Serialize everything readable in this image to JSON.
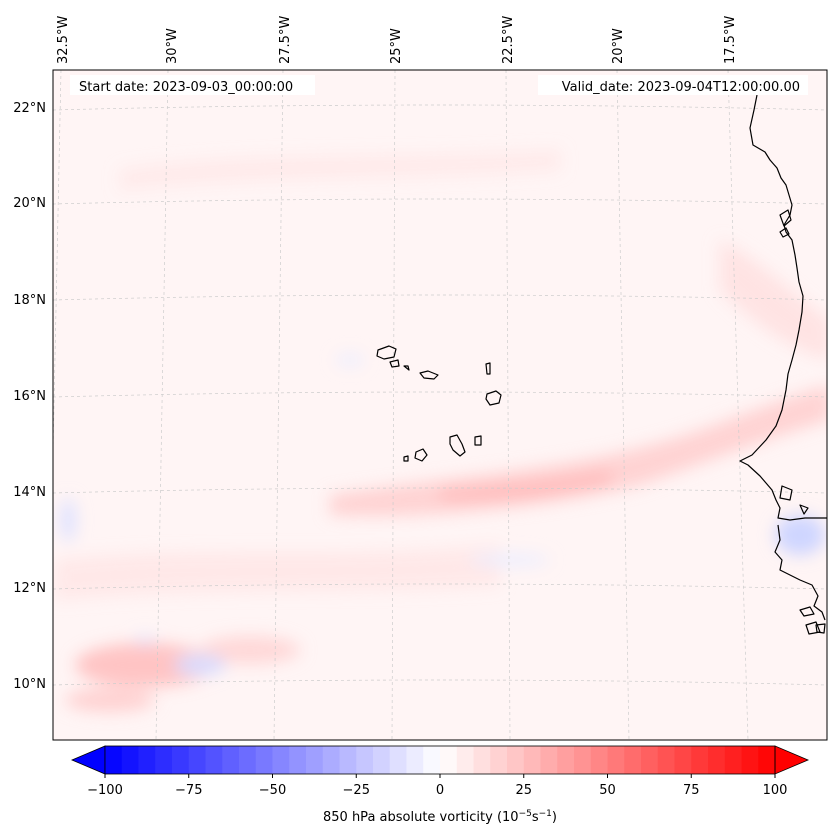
{
  "map": {
    "start_label": "Start date: 2023-09-03_00:00:00",
    "valid_label": "Valid_date: 2023-09-04T12:00:00.00",
    "lon_ticks": [
      "32.5°W",
      "30°W",
      "27.5°W",
      "25°W",
      "22.5°W",
      "20°W",
      "17.5°W"
    ],
    "lat_ticks": [
      "22°N",
      "20°N",
      "18°N",
      "16°N",
      "14°N",
      "12°N",
      "10°N"
    ],
    "coastline_color": "#000000",
    "gridline_color": "#cccccc"
  },
  "colorbar": {
    "label_text": "850 hPa absolute vorticity",
    "units_text": "(10",
    "units_exp1": "−5",
    "units_mid": "s",
    "units_exp2": "−1",
    "units_close": ")",
    "ticks": [
      "−100",
      "−75",
      "−50",
      "−25",
      "0",
      "25",
      "50",
      "75",
      "100"
    ],
    "tick_values": [
      -100,
      -75,
      -50,
      -25,
      0,
      25,
      50,
      75,
      100
    ],
    "range": [
      -100,
      100
    ],
    "neg_color": "#0000ff",
    "mid_color": "#ffffff",
    "pos_color": "#ff0000"
  },
  "chart_data": {
    "type": "heatmap",
    "title": "",
    "variable": "850 hPa absolute vorticity",
    "units": "1e-5 s^-1",
    "vmin": -100,
    "vmax": 100,
    "lon_range": [
      "33°W",
      "15.5°W"
    ],
    "lat_range": [
      "9°N",
      "22.8°N"
    ],
    "features": [
      {
        "name": "background",
        "value": 5
      },
      {
        "name": "easterly-wave-band",
        "value": 20
      },
      {
        "name": "coastal-band",
        "value": 12
      },
      {
        "name": "southern-patch",
        "value": 25
      },
      {
        "name": "negative-patch",
        "value": -15
      }
    ]
  }
}
